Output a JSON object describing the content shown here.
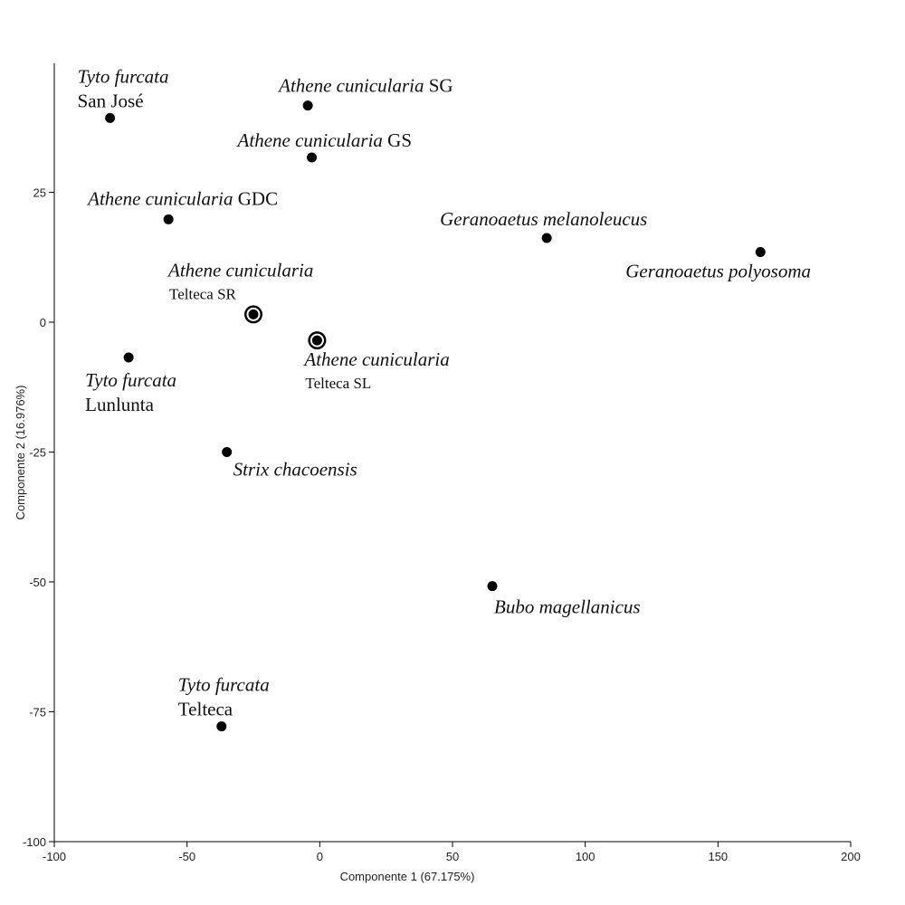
{
  "chart_data": {
    "type": "scatter",
    "title": "",
    "xlabel": "Componente 1 (67.175%)",
    "ylabel": "Componente 2 (16.976%)",
    "xlim": [
      -100,
      200
    ],
    "ylim": [
      -100,
      50
    ],
    "x_ticks": [
      -100,
      -50,
      0,
      50,
      100,
      150,
      200
    ],
    "y_ticks": [
      -100,
      -75,
      -50,
      -25,
      0,
      25
    ],
    "x_tick_labels": [
      "-100",
      "-50",
      "0",
      "50",
      "100",
      "150",
      "200"
    ],
    "y_tick_labels": [
      "-100",
      "-75",
      "-50",
      "-25",
      "0",
      "25"
    ],
    "grid": false,
    "points": [
      {
        "name": "Tyto furcata",
        "site": "San José",
        "x": -79,
        "y": 39.3,
        "highlight": false,
        "label_anchor": "above-left"
      },
      {
        "name": "Athene cunicularia",
        "site": "SG",
        "x": -4.5,
        "y": 41.7,
        "highlight": false,
        "label_anchor": "above-inline"
      },
      {
        "name": "Athene cunicularia",
        "site": "GS",
        "x": -3,
        "y": 31.7,
        "highlight": false,
        "label_anchor": "above-inline"
      },
      {
        "name": "Athene cunicularia",
        "site": "GDC",
        "x": -57,
        "y": 19.8,
        "highlight": false,
        "label_anchor": "above-inline"
      },
      {
        "name": "Geranoaetus melanoleucus",
        "site": "",
        "x": 85.5,
        "y": 16.2,
        "highlight": false,
        "label_anchor": "above"
      },
      {
        "name": "Geranoaetus polyosoma",
        "site": "",
        "x": 166,
        "y": 13.5,
        "highlight": false,
        "label_anchor": "below"
      },
      {
        "name": "Athene cunicularia",
        "site": "Telteca SR",
        "x": -25,
        "y": 1.5,
        "highlight": true,
        "label_anchor": "above-left"
      },
      {
        "name": "Athene cunicularia",
        "site": "Telteca SL",
        "x": -1,
        "y": -3.5,
        "highlight": true,
        "label_anchor": "below"
      },
      {
        "name": "Tyto furcata",
        "site": "Lunlunta",
        "x": -72,
        "y": -6.8,
        "highlight": false,
        "label_anchor": "below"
      },
      {
        "name": "Strix chacoensis",
        "site": "",
        "x": -35,
        "y": -25,
        "highlight": false,
        "label_anchor": "below"
      },
      {
        "name": "Bubo magellanicus",
        "site": "",
        "x": 65,
        "y": -50.8,
        "highlight": false,
        "label_anchor": "below"
      },
      {
        "name": "Tyto furcata",
        "site": "Telteca",
        "x": -37,
        "y": -77.8,
        "highlight": false,
        "label_anchor": "above"
      }
    ]
  }
}
